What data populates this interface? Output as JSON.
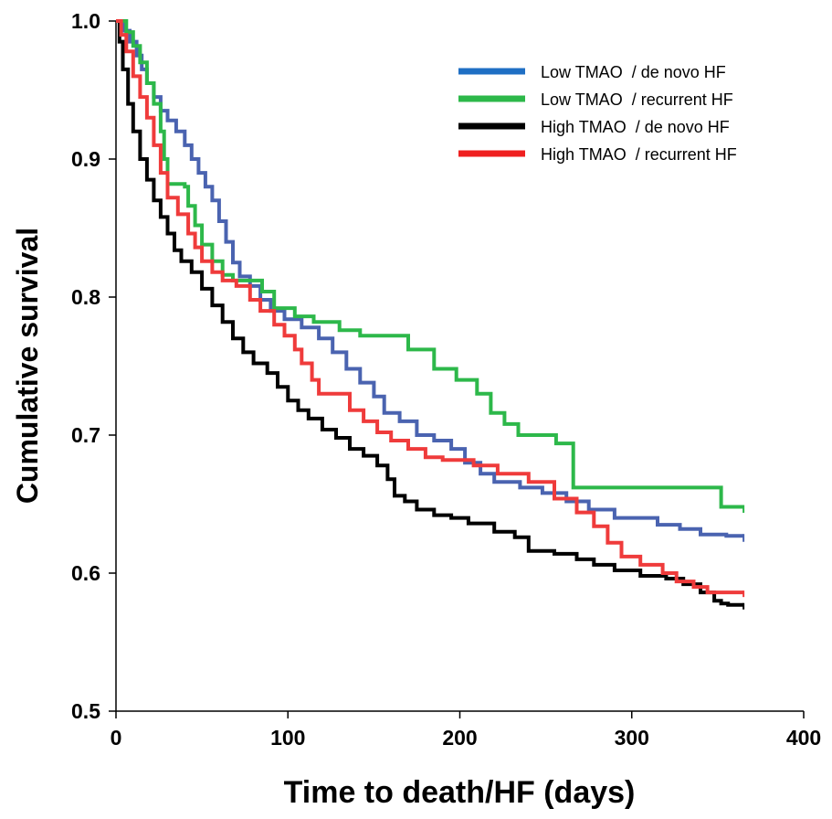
{
  "chart_data": {
    "type": "line",
    "subtype": "kaplan-meier step",
    "xlabel": "Time to death/HF (days)",
    "ylabel": "Cumulative survival",
    "xlim": [
      0,
      400
    ],
    "ylim": [
      0.5,
      1.0
    ],
    "x_ticks": [
      "0",
      "100",
      "200",
      "300",
      "400"
    ],
    "y_ticks": [
      "0.5",
      "0.6",
      "0.7",
      "0.8",
      "0.9",
      "1.0"
    ],
    "grid": false,
    "legend_position": "top-right",
    "series": [
      {
        "name": "Low TMAO  / de novo HF",
        "color": "#4a63b0",
        "legend_color": "#1f6fc4",
        "points": [
          [
            0,
            1.0
          ],
          [
            5,
            0.993
          ],
          [
            8,
            0.985
          ],
          [
            12,
            0.975
          ],
          [
            15,
            0.965
          ],
          [
            18,
            0.955
          ],
          [
            22,
            0.945
          ],
          [
            26,
            0.935
          ],
          [
            30,
            0.928
          ],
          [
            35,
            0.92
          ],
          [
            40,
            0.91
          ],
          [
            44,
            0.9
          ],
          [
            48,
            0.89
          ],
          [
            52,
            0.88
          ],
          [
            56,
            0.87
          ],
          [
            60,
            0.855
          ],
          [
            64,
            0.84
          ],
          [
            68,
            0.825
          ],
          [
            72,
            0.815
          ],
          [
            78,
            0.808
          ],
          [
            84,
            0.798
          ],
          [
            90,
            0.79
          ],
          [
            98,
            0.784
          ],
          [
            108,
            0.778
          ],
          [
            118,
            0.77
          ],
          [
            126,
            0.76
          ],
          [
            134,
            0.748
          ],
          [
            142,
            0.738
          ],
          [
            150,
            0.728
          ],
          [
            156,
            0.716
          ],
          [
            165,
            0.71
          ],
          [
            175,
            0.7
          ],
          [
            185,
            0.696
          ],
          [
            195,
            0.69
          ],
          [
            203,
            0.68
          ],
          [
            212,
            0.672
          ],
          [
            220,
            0.666
          ],
          [
            235,
            0.662
          ],
          [
            248,
            0.658
          ],
          [
            262,
            0.652
          ],
          [
            275,
            0.646
          ],
          [
            290,
            0.64
          ],
          [
            300,
            0.64
          ],
          [
            315,
            0.635
          ],
          [
            328,
            0.632
          ],
          [
            340,
            0.628
          ],
          [
            355,
            0.627
          ],
          [
            365,
            0.627
          ]
        ],
        "censor_tick": 0.624
      },
      {
        "name": "Low TMAO  / recurrent HF",
        "color": "#2db84a",
        "legend_color": "#2db84a",
        "points": [
          [
            0,
            1.0
          ],
          [
            6,
            0.992
          ],
          [
            10,
            0.982
          ],
          [
            14,
            0.97
          ],
          [
            18,
            0.955
          ],
          [
            22,
            0.94
          ],
          [
            26,
            0.92
          ],
          [
            28,
            0.9
          ],
          [
            30,
            0.882
          ],
          [
            40,
            0.88
          ],
          [
            42,
            0.866
          ],
          [
            46,
            0.852
          ],
          [
            50,
            0.838
          ],
          [
            56,
            0.826
          ],
          [
            62,
            0.816
          ],
          [
            68,
            0.812
          ],
          [
            85,
            0.804
          ],
          [
            92,
            0.792
          ],
          [
            104,
            0.786
          ],
          [
            115,
            0.782
          ],
          [
            130,
            0.776
          ],
          [
            142,
            0.772
          ],
          [
            170,
            0.762
          ],
          [
            185,
            0.748
          ],
          [
            198,
            0.74
          ],
          [
            210,
            0.73
          ],
          [
            218,
            0.716
          ],
          [
            226,
            0.708
          ],
          [
            234,
            0.7
          ],
          [
            250,
            0.7
          ],
          [
            256,
            0.694
          ],
          [
            265,
            0.694
          ],
          [
            266,
            0.662
          ],
          [
            300,
            0.662
          ],
          [
            350,
            0.662
          ],
          [
            352,
            0.648
          ],
          [
            365,
            0.648
          ]
        ],
        "censor_tick": 0.645
      },
      {
        "name": "High TMAO  / de novo HF",
        "color": "#000000",
        "legend_color": "#000000",
        "points": [
          [
            0,
            1.0
          ],
          [
            2,
            0.985
          ],
          [
            4,
            0.965
          ],
          [
            7,
            0.94
          ],
          [
            10,
            0.92
          ],
          [
            14,
            0.9
          ],
          [
            18,
            0.885
          ],
          [
            22,
            0.87
          ],
          [
            26,
            0.858
          ],
          [
            30,
            0.846
          ],
          [
            34,
            0.834
          ],
          [
            38,
            0.826
          ],
          [
            44,
            0.818
          ],
          [
            50,
            0.806
          ],
          [
            56,
            0.794
          ],
          [
            62,
            0.782
          ],
          [
            68,
            0.77
          ],
          [
            74,
            0.76
          ],
          [
            80,
            0.752
          ],
          [
            88,
            0.745
          ],
          [
            94,
            0.735
          ],
          [
            100,
            0.725
          ],
          [
            106,
            0.718
          ],
          [
            112,
            0.712
          ],
          [
            120,
            0.704
          ],
          [
            128,
            0.698
          ],
          [
            136,
            0.69
          ],
          [
            144,
            0.685
          ],
          [
            152,
            0.678
          ],
          [
            158,
            0.668
          ],
          [
            162,
            0.656
          ],
          [
            168,
            0.652
          ],
          [
            175,
            0.646
          ],
          [
            185,
            0.642
          ],
          [
            195,
            0.64
          ],
          [
            205,
            0.636
          ],
          [
            220,
            0.63
          ],
          [
            232,
            0.626
          ],
          [
            240,
            0.616
          ],
          [
            255,
            0.614
          ],
          [
            268,
            0.61
          ],
          [
            278,
            0.606
          ],
          [
            290,
            0.602
          ],
          [
            305,
            0.598
          ],
          [
            320,
            0.596
          ],
          [
            330,
            0.592
          ],
          [
            340,
            0.586
          ],
          [
            348,
            0.58
          ],
          [
            352,
            0.578
          ],
          [
            356,
            0.577
          ],
          [
            365,
            0.577
          ]
        ],
        "censor_tick": 0.575
      },
      {
        "name": "High TMAO  / recurrent HF",
        "color": "#ef3b3b",
        "legend_color": "#ef2020",
        "points": [
          [
            0,
            1.0
          ],
          [
            3,
            0.99
          ],
          [
            6,
            0.978
          ],
          [
            10,
            0.96
          ],
          [
            14,
            0.945
          ],
          [
            18,
            0.93
          ],
          [
            22,
            0.91
          ],
          [
            26,
            0.89
          ],
          [
            30,
            0.872
          ],
          [
            36,
            0.86
          ],
          [
            42,
            0.846
          ],
          [
            46,
            0.836
          ],
          [
            50,
            0.826
          ],
          [
            56,
            0.818
          ],
          [
            62,
            0.812
          ],
          [
            70,
            0.808
          ],
          [
            78,
            0.798
          ],
          [
            84,
            0.79
          ],
          [
            92,
            0.78
          ],
          [
            98,
            0.772
          ],
          [
            104,
            0.762
          ],
          [
            108,
            0.752
          ],
          [
            114,
            0.74
          ],
          [
            118,
            0.73
          ],
          [
            130,
            0.73
          ],
          [
            136,
            0.718
          ],
          [
            144,
            0.71
          ],
          [
            152,
            0.702
          ],
          [
            160,
            0.696
          ],
          [
            170,
            0.69
          ],
          [
            180,
            0.684
          ],
          [
            190,
            0.682
          ],
          [
            208,
            0.678
          ],
          [
            222,
            0.672
          ],
          [
            240,
            0.666
          ],
          [
            255,
            0.654
          ],
          [
            268,
            0.644
          ],
          [
            278,
            0.634
          ],
          [
            286,
            0.622
          ],
          [
            294,
            0.612
          ],
          [
            305,
            0.606
          ],
          [
            318,
            0.6
          ],
          [
            326,
            0.594
          ],
          [
            336,
            0.59
          ],
          [
            344,
            0.586
          ],
          [
            365,
            0.586
          ]
        ],
        "censor_tick": 0.584
      }
    ]
  }
}
